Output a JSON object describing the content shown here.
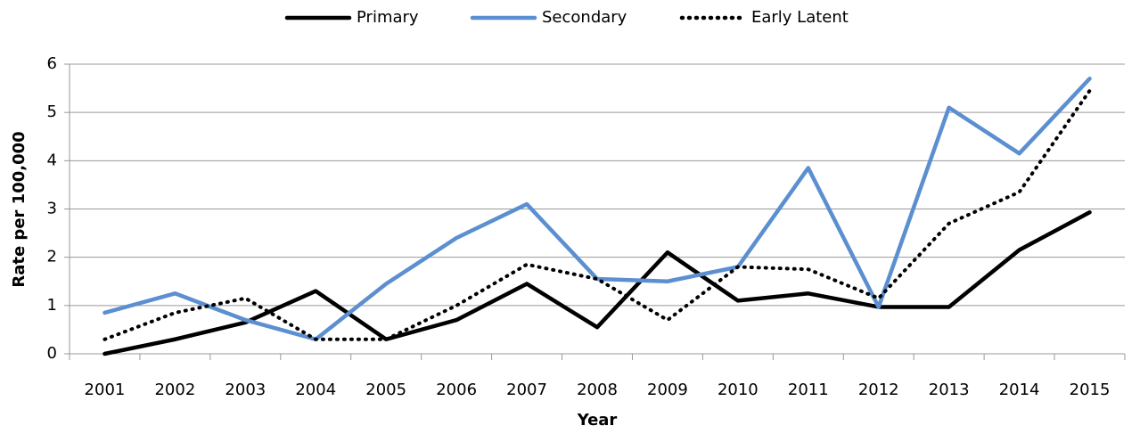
{
  "chart_data": {
    "type": "line",
    "x_label": "Year",
    "y_label": "Rate per 100,000",
    "categories": [
      "2001",
      "2002",
      "2003",
      "2004",
      "2005",
      "2006",
      "2007",
      "2008",
      "2009",
      "2010",
      "2011",
      "2012",
      "2013",
      "2014",
      "2015"
    ],
    "series": [
      {
        "name": "Primary",
        "color": "#000000",
        "dash": "solid",
        "values": [
          0,
          0.3,
          0.65,
          1.3,
          0.3,
          0.7,
          1.45,
          0.55,
          2.1,
          1.1,
          1.25,
          0.97,
          0.97,
          2.15,
          2.93
        ]
      },
      {
        "name": "Secondary",
        "color": "#5b8fd0",
        "dash": "solid",
        "values": [
          0.85,
          1.25,
          0.7,
          0.3,
          1.45,
          2.4,
          3.1,
          1.55,
          1.5,
          1.8,
          3.85,
          0.97,
          5.1,
          4.15,
          5.7
        ]
      },
      {
        "name": "Early Latent",
        "color": "#000000",
        "dash": "dotted",
        "values": [
          0.3,
          0.85,
          1.15,
          0.3,
          0.3,
          1.0,
          1.85,
          1.55,
          0.7,
          1.8,
          1.75,
          1.15,
          2.7,
          3.35,
          5.45
        ]
      }
    ],
    "ylim": [
      0,
      6
    ],
    "yticks": [
      0,
      1,
      2,
      3,
      4,
      5,
      6
    ],
    "grid": true,
    "legend": "top"
  }
}
